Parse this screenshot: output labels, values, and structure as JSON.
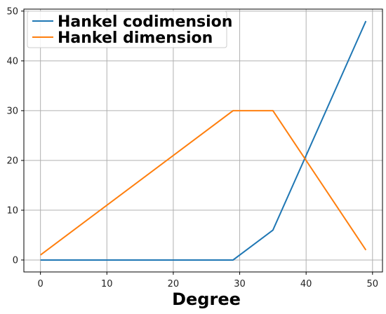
{
  "chart_data": {
    "type": "line",
    "title": "",
    "xlabel": "Degree",
    "ylabel": "",
    "xlim": [
      -2.5,
      51.5
    ],
    "ylim": [
      -2.4,
      50.4
    ],
    "xticks": [
      0,
      10,
      20,
      30,
      40,
      50
    ],
    "yticks": [
      0,
      10,
      20,
      30,
      40,
      50
    ],
    "grid": true,
    "legend_position": "top-left",
    "series": [
      {
        "name": "Hankel codimension",
        "color": "#1f77b4",
        "x": [
          0,
          29,
          35,
          40,
          49
        ],
        "y": [
          0,
          0,
          6,
          21,
          48
        ]
      },
      {
        "name": "Hankel dimension",
        "color": "#ff7f0e",
        "x": [
          0,
          29,
          35,
          40,
          49
        ],
        "y": [
          1,
          30,
          30,
          20,
          2
        ]
      }
    ]
  }
}
